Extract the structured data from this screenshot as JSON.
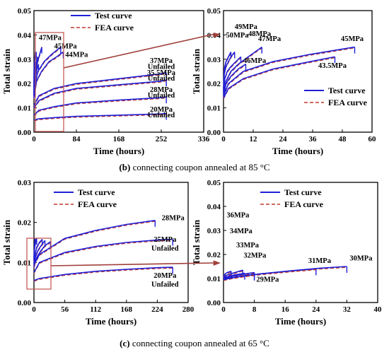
{
  "captions": {
    "b_letter": "(b)",
    "b_text": " connecting coupon annealed at 85 °C",
    "c_letter": "(c)",
    "c_text": " connecting coupon annealed at 65 °C"
  },
  "colors": {
    "test": "#1f1fd8",
    "fea": "#c0392b",
    "axis": "#000000",
    "box": "#c0504d",
    "arrow": "#a0403a"
  },
  "chart_data": [
    {
      "id": "b_left",
      "type": "line",
      "xlabel": "Time (hours)",
      "ylabel": "Total strain",
      "xlim": [
        0,
        336
      ],
      "ylim": [
        0,
        0.05
      ],
      "xticks": [
        0,
        84,
        168,
        252,
        336
      ],
      "yticks": [
        0.0,
        0.01,
        0.02,
        0.03,
        0.04,
        0.05
      ],
      "ytick_labels": [
        "0.00",
        "0.01",
        "0.02",
        "0.03",
        "0.04",
        "0.05"
      ],
      "legend": {
        "position": "top-center",
        "entries": [
          "Test curve",
          "FEA curve"
        ]
      },
      "series": [
        {
          "label": "50MPa",
          "x": [
            0,
            0.3,
            1,
            2,
            3
          ],
          "y": [
            0.018,
            0.026,
            0.029,
            0.031,
            0.033
          ],
          "failed": true
        },
        {
          "label": "49MPa",
          "x": [
            0,
            0.3,
            1,
            2,
            3,
            4.5
          ],
          "y": [
            0.017,
            0.024,
            0.027,
            0.029,
            0.031,
            0.033
          ],
          "failed": true
        },
        {
          "label": "48MPa",
          "x": [
            0,
            0.5,
            1.5,
            3,
            5,
            7
          ],
          "y": [
            0.016,
            0.022,
            0.025,
            0.027,
            0.029,
            0.031
          ],
          "failed": true
        },
        {
          "label": "47MPa",
          "x": [
            0,
            1,
            3,
            6,
            10,
            15.5
          ],
          "y": [
            0.015,
            0.021,
            0.025,
            0.028,
            0.031,
            0.035
          ],
          "failed": true
        },
        {
          "label": "46MPa",
          "x": [
            0,
            1,
            3,
            6,
            9
          ],
          "y": [
            0.015,
            0.02,
            0.023,
            0.026,
            0.028
          ],
          "failed": true
        },
        {
          "label": "45MPa",
          "x": [
            0,
            2,
            8,
            20,
            35,
            53
          ],
          "y": [
            0.015,
            0.02,
            0.025,
            0.029,
            0.032,
            0.035
          ],
          "failed": true
        },
        {
          "label": "44MPa",
          "x": [
            0,
            5,
            15,
            30,
            45,
            58
          ],
          "y": [
            0.014,
            0.021,
            0.025,
            0.029,
            0.031,
            0.033
          ],
          "failed": true
        },
        {
          "label": "37MPa",
          "x": [
            0,
            10,
            40,
            84,
            168,
            252,
            262
          ],
          "y": [
            0.011,
            0.015,
            0.018,
            0.02,
            0.022,
            0.024,
            0.0245
          ],
          "failed": false
        },
        {
          "label": "35.5MPa",
          "x": [
            0,
            10,
            40,
            84,
            168,
            252,
            262
          ],
          "y": [
            0.01,
            0.013,
            0.016,
            0.018,
            0.0195,
            0.021,
            0.0215
          ],
          "failed": false
        },
        {
          "label": "28MPa",
          "x": [
            0,
            10,
            40,
            84,
            168,
            252,
            262
          ],
          "y": [
            0.007,
            0.009,
            0.0105,
            0.012,
            0.0132,
            0.0142,
            0.0145
          ],
          "failed": false
        },
        {
          "label": "20MPa",
          "x": [
            0,
            10,
            40,
            84,
            168,
            252,
            262
          ],
          "y": [
            0.005,
            0.0055,
            0.006,
            0.0065,
            0.007,
            0.0075,
            0.0077
          ],
          "failed": false
        }
      ],
      "annotations": [
        "47MPa",
        "45MPa",
        "44MPa",
        "37MPa",
        "Unfailed",
        "35.5MPa",
        "Unfailed",
        "28MPa",
        "Unfailed",
        "20MPa",
        "Unfailed"
      ]
    },
    {
      "id": "b_right",
      "type": "line",
      "xlabel": "Time (hours)",
      "ylabel": "Total strain",
      "xlim": [
        0,
        60
      ],
      "ylim": [
        0,
        0.05
      ],
      "xticks": [
        0,
        12,
        24,
        36,
        48,
        60
      ],
      "yticks": [
        0.0,
        0.01,
        0.02,
        0.03,
        0.04,
        0.05
      ],
      "ytick_labels": [
        "0.00",
        "0.01",
        "0.02",
        "0.03",
        "0.04",
        "0.05"
      ],
      "legend": {
        "position": "lower-right",
        "entries": [
          "Test curve",
          "FEA  curve"
        ]
      },
      "series": [
        {
          "label": "50MPa",
          "x": [
            0,
            0.3,
            1,
            2,
            3
          ],
          "y": [
            0.018,
            0.026,
            0.029,
            0.031,
            0.033
          ]
        },
        {
          "label": "49MPa",
          "x": [
            0,
            0.3,
            1,
            2,
            3,
            4.5
          ],
          "y": [
            0.017,
            0.024,
            0.027,
            0.029,
            0.031,
            0.033
          ]
        },
        {
          "label": "48MPa",
          "x": [
            0,
            0.5,
            1.5,
            3,
            5,
            7
          ],
          "y": [
            0.016,
            0.022,
            0.025,
            0.027,
            0.029,
            0.031
          ]
        },
        {
          "label": "47MPa",
          "x": [
            0,
            1,
            3,
            6,
            10,
            15.5
          ],
          "y": [
            0.015,
            0.021,
            0.025,
            0.028,
            0.031,
            0.035
          ]
        },
        {
          "label": "46MPa",
          "x": [
            0,
            1,
            3,
            6,
            9
          ],
          "y": [
            0.015,
            0.02,
            0.023,
            0.026,
            0.028
          ]
        },
        {
          "label": "45MPa",
          "x": [
            0,
            2,
            8,
            20,
            35,
            53
          ],
          "y": [
            0.015,
            0.02,
            0.025,
            0.029,
            0.032,
            0.035
          ]
        },
        {
          "label": "43.5MPa",
          "x": [
            0,
            2,
            8,
            20,
            35,
            45
          ],
          "y": [
            0.014,
            0.018,
            0.022,
            0.026,
            0.029,
            0.031
          ]
        }
      ],
      "annotations": [
        "50MPa",
        "49MPa",
        "48MPa",
        "47MPa",
        "46MPa",
        "45MPa",
        "43.5MPa"
      ]
    },
    {
      "id": "c_left",
      "type": "line",
      "xlabel": "Time (hours)",
      "ylabel": "Total strain",
      "xlim": [
        0,
        280
      ],
      "ylim": [
        0,
        0.03
      ],
      "xticks": [
        0,
        56,
        112,
        168,
        224,
        280
      ],
      "yticks": [
        0.0,
        0.01,
        0.02,
        0.03
      ],
      "ytick_labels": [
        "0.00",
        "0.01",
        "0.02",
        "0.03"
      ],
      "legend": {
        "position": "top-center",
        "entries": [
          "Test curve",
          "FEA curve"
        ]
      },
      "series": [
        {
          "label": "36MPa",
          "x": [
            0,
            1,
            2
          ],
          "y": [
            0.011,
            0.014,
            0.016
          ],
          "failed": true
        },
        {
          "label": "34MPa",
          "x": [
            0,
            1,
            3,
            5
          ],
          "y": [
            0.0105,
            0.0135,
            0.015,
            0.016
          ],
          "failed": true
        },
        {
          "label": "33MPa",
          "x": [
            0,
            2,
            5,
            10,
            15
          ],
          "y": [
            0.0095,
            0.012,
            0.0138,
            0.015,
            0.0158
          ],
          "failed": true
        },
        {
          "label": "32MPa",
          "x": [
            0,
            3,
            8,
            15,
            20
          ],
          "y": [
            0.009,
            0.0115,
            0.0132,
            0.0146,
            0.0155
          ],
          "failed": true
        },
        {
          "label": "31MPa",
          "x": [
            0,
            5,
            12,
            20,
            30
          ],
          "y": [
            0.0088,
            0.0112,
            0.0128,
            0.0142,
            0.0152
          ],
          "failed": true
        },
        {
          "label": "28MPa",
          "x": [
            0,
            10,
            56,
            112,
            168,
            220
          ],
          "y": [
            0.0095,
            0.012,
            0.016,
            0.018,
            0.0195,
            0.0205
          ],
          "failed": true
        },
        {
          "label": "25MPa",
          "x": [
            0,
            10,
            56,
            112,
            168,
            224,
            252
          ],
          "y": [
            0.0075,
            0.01,
            0.0125,
            0.014,
            0.015,
            0.0156,
            0.0158
          ],
          "failed": false
        },
        {
          "label": "20MPa",
          "x": [
            0,
            10,
            56,
            112,
            168,
            224,
            252
          ],
          "y": [
            0.0055,
            0.006,
            0.007,
            0.0078,
            0.0083,
            0.0087,
            0.0088
          ],
          "failed": false
        }
      ],
      "annotations": [
        "28MPa",
        "25MPa",
        "Unfailed",
        "20MPa",
        "Unfailed"
      ]
    },
    {
      "id": "c_right",
      "type": "line",
      "xlabel": "Time (hours)",
      "ylabel": "Total strain",
      "xlim": [
        0,
        40
      ],
      "ylim": [
        0,
        0.05
      ],
      "xticks": [
        0,
        8,
        16,
        24,
        32,
        40
      ],
      "yticks": [
        0.0,
        0.01,
        0.02,
        0.03,
        0.04,
        0.05
      ],
      "ytick_labels": [
        "0.00",
        "0.01",
        "0.02",
        "0.03",
        "0.04",
        "0.05"
      ],
      "legend": {
        "position": "top-center",
        "entries": [
          "Test curve",
          "FEA curve"
        ]
      },
      "series": [
        {
          "label": "36MPa",
          "x": [
            0,
            0.5,
            1,
            2
          ],
          "y": [
            0.011,
            0.012,
            0.0125,
            0.013
          ]
        },
        {
          "label": "34MPa",
          "x": [
            0,
            1,
            2,
            3,
            5
          ],
          "y": [
            0.0105,
            0.0115,
            0.012,
            0.0125,
            0.0135
          ]
        },
        {
          "label": "33MPa",
          "x": [
            0,
            2,
            4,
            5.5
          ],
          "y": [
            0.0102,
            0.0112,
            0.0118,
            0.0122
          ]
        },
        {
          "label": "32MPa",
          "x": [
            0,
            3,
            6,
            8
          ],
          "y": [
            0.01,
            0.0112,
            0.012,
            0.0125
          ]
        },
        {
          "label": "31MPa",
          "x": [
            0,
            4,
            10,
            18,
            24
          ],
          "y": [
            0.0098,
            0.0108,
            0.012,
            0.0132,
            0.014
          ]
        },
        {
          "label": "30MPa",
          "x": [
            0,
            4,
            10,
            18,
            25,
            32
          ],
          "y": [
            0.0097,
            0.0108,
            0.012,
            0.0133,
            0.0143,
            0.015
          ]
        },
        {
          "label": "29MPa",
          "x": [
            0,
            2,
            5,
            8
          ],
          "y": [
            0.0095,
            0.0102,
            0.011,
            0.0118
          ]
        }
      ],
      "annotations": [
        "36MPa",
        "34MPa",
        "33MPa",
        "32MPa",
        "31MPa",
        "30MPa",
        "29MPa"
      ]
    }
  ]
}
